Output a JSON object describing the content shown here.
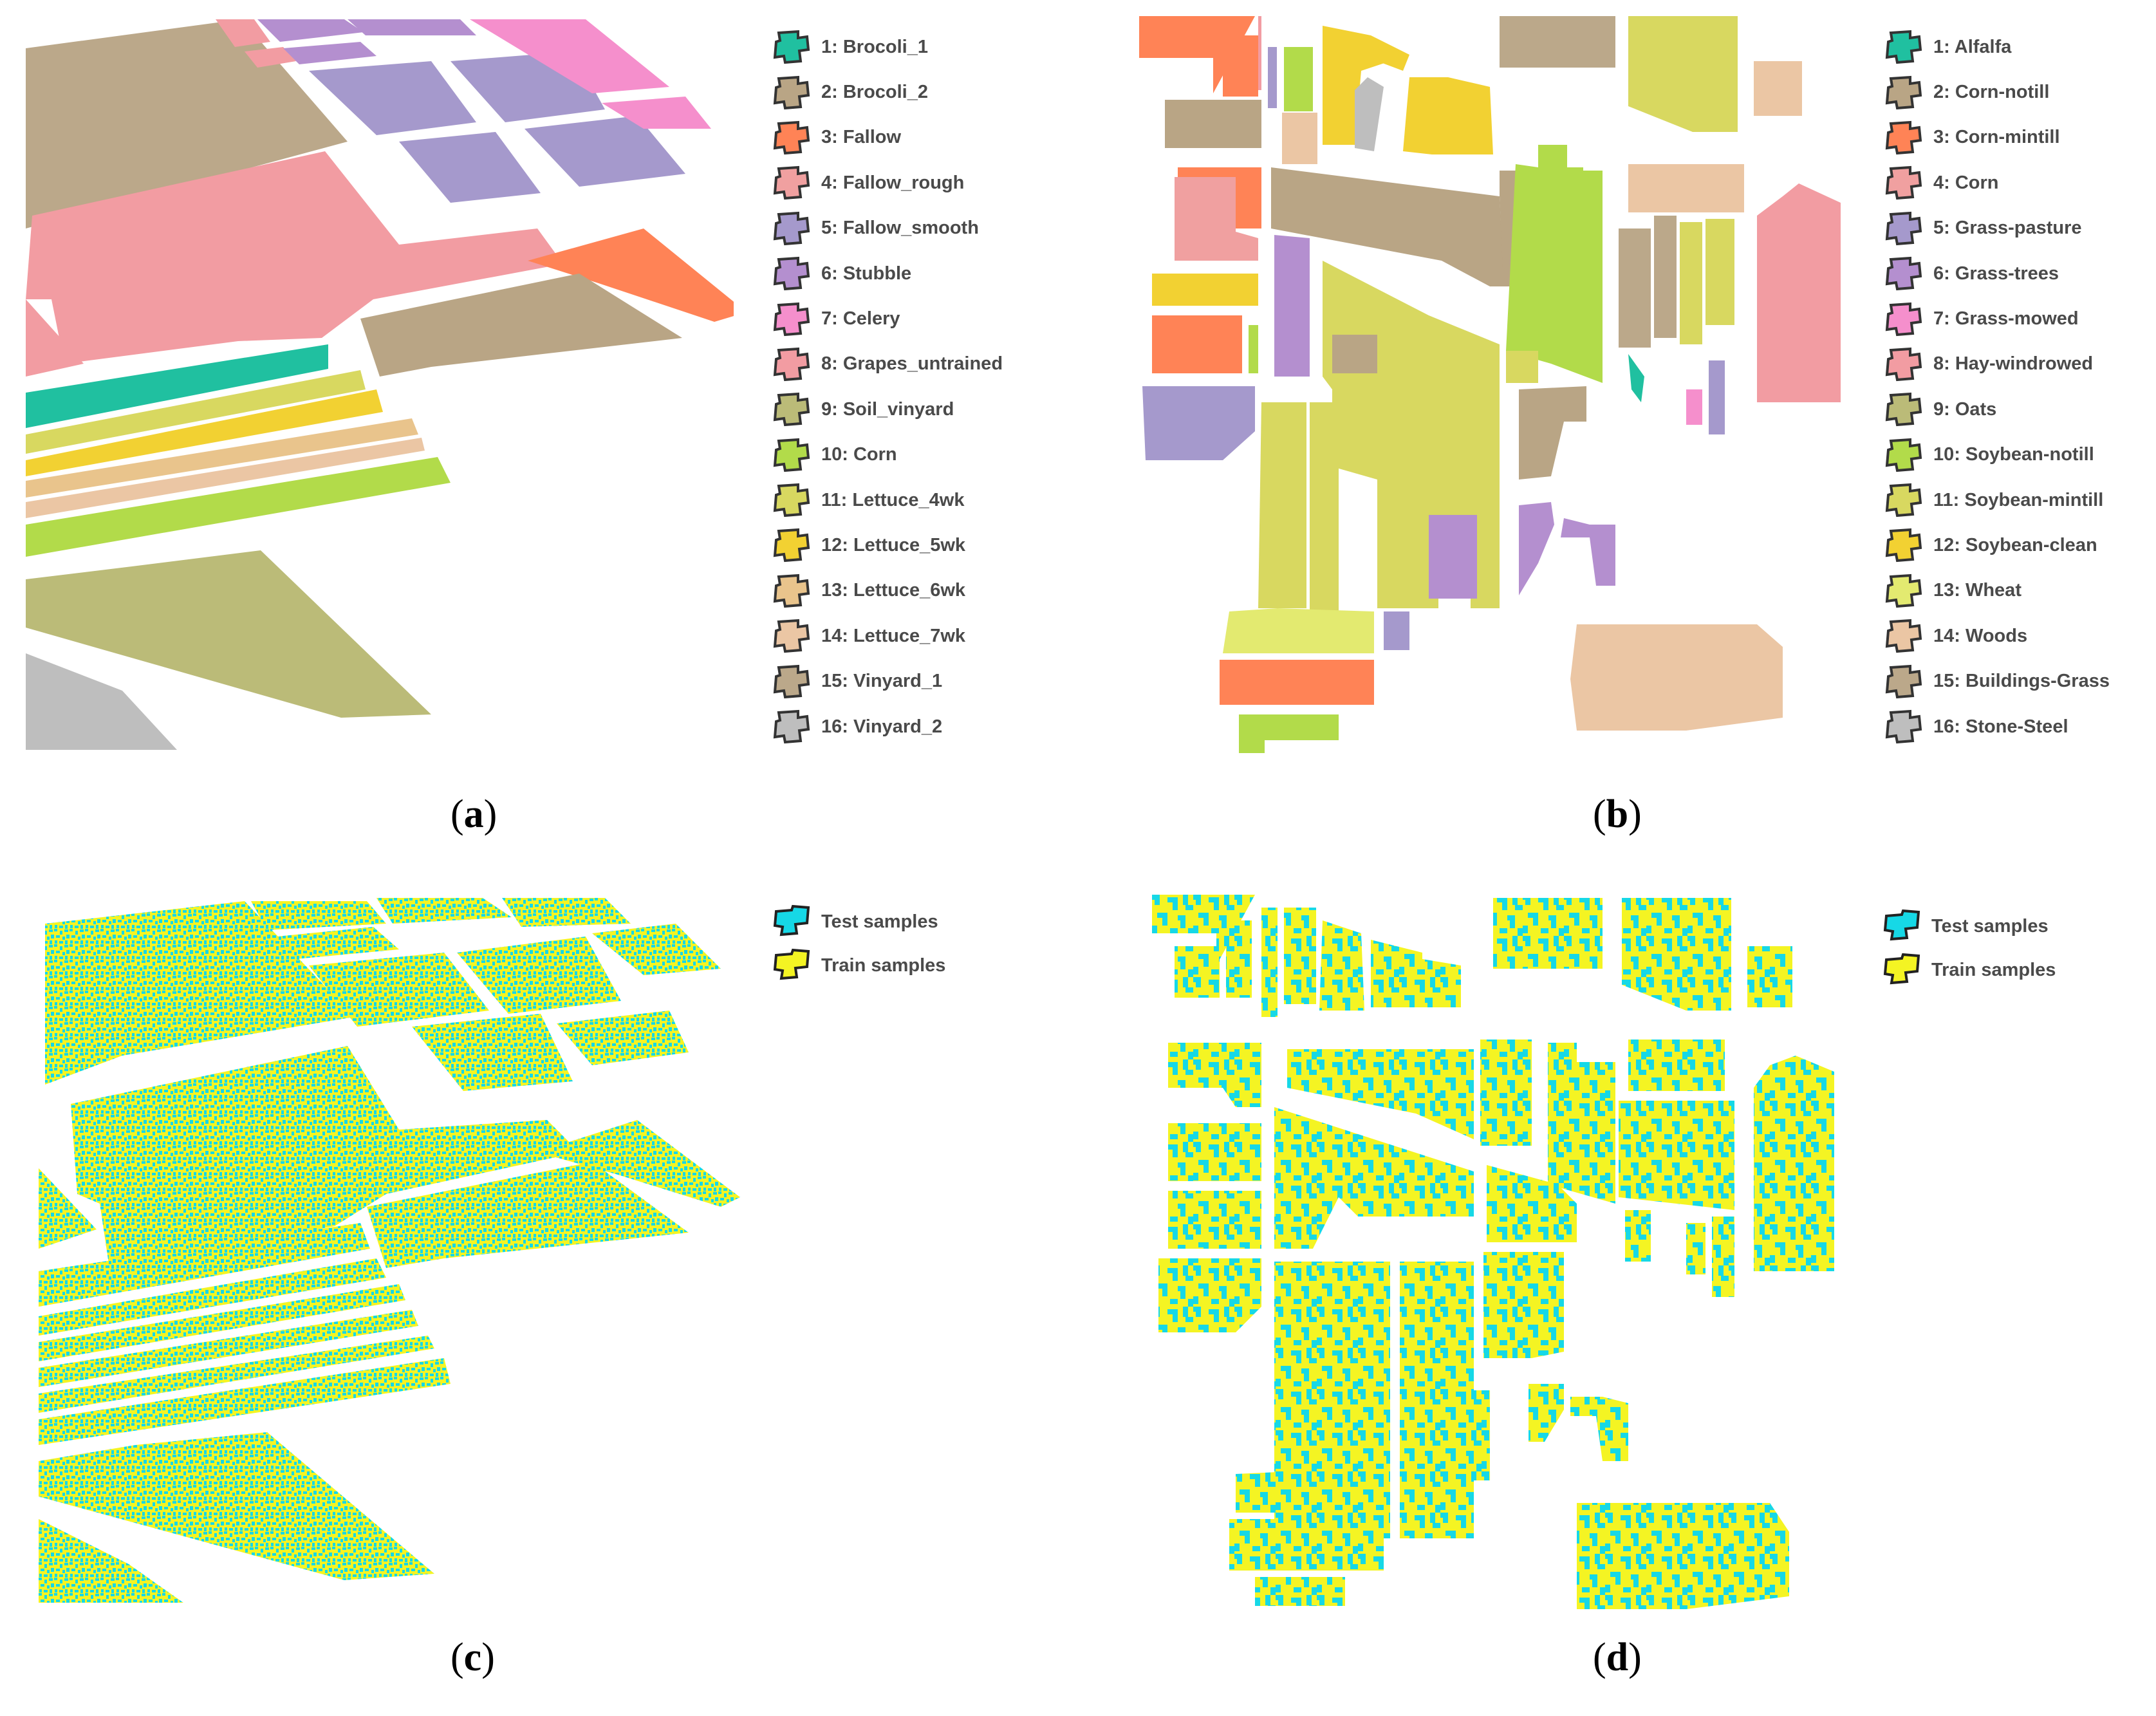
{
  "colors": {
    "c1": "#20c0a0",
    "c2": "#b9a585",
    "c3": "#ff8356",
    "c4": "#f0a0a0",
    "c5": "#a599cc",
    "c6": "#b48fcf",
    "c7": "#f58fcc",
    "c8": "#f29ca2",
    "c9": "#bbbb78",
    "c10": "#b2db4a",
    "c11": "#d8d860",
    "c12": "#f2d132",
    "c13": "#e9c48c",
    "c14": "#ebc6a4",
    "c15": "#bba88a",
    "c16": "#bebebe",
    "test": "#16d8e6",
    "train": "#f4f423"
  },
  "panels": {
    "a": {
      "caption_open": "(",
      "caption_letter": "a",
      "caption_close": ")",
      "legend": [
        {
          "label": "1: Brocoli_1",
          "color": "#20c0a0"
        },
        {
          "label": "2: Brocoli_2",
          "color": "#b9a585"
        },
        {
          "label": "3: Fallow",
          "color": "#ff8356"
        },
        {
          "label": "4: Fallow_rough",
          "color": "#f0a0a0"
        },
        {
          "label": "5: Fallow_smooth",
          "color": "#a599cc"
        },
        {
          "label": "6: Stubble",
          "color": "#b48fcf"
        },
        {
          "label": "7: Celery",
          "color": "#f58fcc"
        },
        {
          "label": "8: Grapes_untrained",
          "color": "#f29ca2"
        },
        {
          "label": "9: Soil_vinyard",
          "color": "#bbbb78"
        },
        {
          "label": "10: Corn",
          "color": "#b2db4a"
        },
        {
          "label": "11: Lettuce_4wk",
          "color": "#d8d860"
        },
        {
          "label": "12: Lettuce_5wk",
          "color": "#f2d132"
        },
        {
          "label": "13: Lettuce_6wk",
          "color": "#e9c48c"
        },
        {
          "label": "14: Lettuce_7wk",
          "color": "#ebc6a4"
        },
        {
          "label": "15: Vinyard_1",
          "color": "#bba88a"
        },
        {
          "label": "16: Vinyard_2",
          "color": "#bebebe"
        }
      ]
    },
    "b": {
      "caption_open": "(",
      "caption_letter": "b",
      "caption_close": ")",
      "legend": [
        {
          "label": "1: Alfalfa",
          "color": "#20c0a0"
        },
        {
          "label": "2: Corn-notill",
          "color": "#b9a585"
        },
        {
          "label": "3: Corn-mintill",
          "color": "#ff8356"
        },
        {
          "label": "4: Corn",
          "color": "#f0a0a0"
        },
        {
          "label": "5: Grass-pasture",
          "color": "#a599cc"
        },
        {
          "label": "6: Grass-trees",
          "color": "#b48fcf"
        },
        {
          "label": "7: Grass-mowed",
          "color": "#f58fcc"
        },
        {
          "label": "8: Hay-windrowed",
          "color": "#f29ca2"
        },
        {
          "label": "9: Oats",
          "color": "#bbbb78"
        },
        {
          "label": "10: Soybean-notill",
          "color": "#b2db4a"
        },
        {
          "label": "11: Soybean-mintill",
          "color": "#d8d860"
        },
        {
          "label": "12: Soybean-clean",
          "color": "#f2d132"
        },
        {
          "label": "13: Wheat",
          "color": "#e3ea70"
        },
        {
          "label": "14: Woods",
          "color": "#ebc6a4"
        },
        {
          "label": "15: Buildings-Grass",
          "color": "#bba88a"
        },
        {
          "label": "16: Stone-Steel",
          "color": "#bebebe"
        }
      ]
    },
    "c": {
      "caption_open": "(",
      "caption_letter": "c",
      "caption_close": ")",
      "legend": [
        {
          "label": "Test samples",
          "color": "#16d8e6"
        },
        {
          "label": "Train samples",
          "color": "#f4f423"
        }
      ]
    },
    "d": {
      "caption_open": "(",
      "caption_letter": "d",
      "caption_close": ")",
      "legend": [
        {
          "label": "Test samples",
          "color": "#16d8e6"
        },
        {
          "label": "Train samples",
          "color": "#f4f423"
        }
      ]
    }
  }
}
